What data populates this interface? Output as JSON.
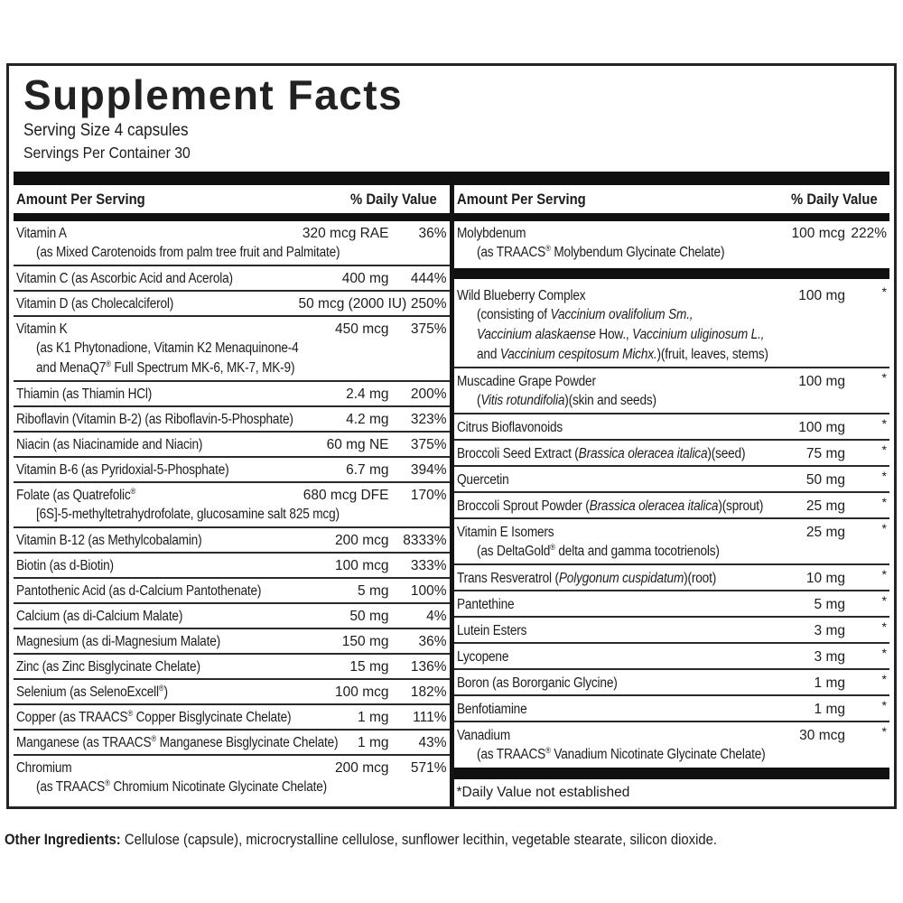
{
  "panel": {
    "title": "Supplement Facts",
    "serving_size": "Serving Size 4 capsules",
    "servings_per_container": "Servings Per Container 30"
  },
  "columns": [
    {
      "id": "left",
      "header": {
        "amount_label": "Amount Per Serving",
        "dv_label": "% Daily Value"
      },
      "rows": [
        {
          "name": [
            {
              "t": "Vitamin A"
            }
          ],
          "amount": "320 mcg RAE",
          "dv": "36%",
          "sub": [
            [
              {
                "t": "(as Mixed Carotenoids from palm tree fruit and Palmitate)"
              }
            ]
          ]
        },
        {
          "name": [
            {
              "t": "Vitamin C (as Ascorbic Acid and Acerola)"
            }
          ],
          "amount": "400 mg",
          "dv": "444%"
        },
        {
          "name": [
            {
              "t": "Vitamin D (as Cholecalciferol)"
            }
          ],
          "amount": "50 mcg (2000 IU)",
          "dv": "250%"
        },
        {
          "name": [
            {
              "t": "Vitamin K"
            }
          ],
          "amount": "450 mcg",
          "dv": "375%",
          "sub": [
            [
              {
                "t": "(as K1 Phytonadione, Vitamin K2 Menaquinone-4"
              }
            ],
            [
              {
                "t": "and MenaQ7® Full Spectrum MK-6, MK-7, MK-9)"
              }
            ]
          ]
        },
        {
          "name": [
            {
              "t": "Thiamin (as Thiamin HCl)"
            }
          ],
          "amount": "2.4 mg",
          "dv": "200%"
        },
        {
          "name": [
            {
              "t": "Riboflavin (Vitamin B-2) (as Riboflavin-5-Phosphate)"
            }
          ],
          "amount": "4.2 mg",
          "dv": "323%"
        },
        {
          "name": [
            {
              "t": "Niacin (as Niacinamide and Niacin)"
            }
          ],
          "amount": "60 mg NE",
          "dv": "375%"
        },
        {
          "name": [
            {
              "t": "Vitamin B-6 (as Pyridoxial-5-Phosphate)"
            }
          ],
          "amount": "6.7 mg",
          "dv": "394%"
        },
        {
          "name": [
            {
              "t": "Folate (as Quatrefolic®"
            }
          ],
          "amount": "680 mcg DFE",
          "dv": "170%",
          "sub": [
            [
              {
                "t": "[6S]-5-methyltetrahydrofolate, glucosamine salt 825 mcg)"
              }
            ]
          ]
        },
        {
          "name": [
            {
              "t": "Vitamin B-12 (as Methylcobalamin)"
            }
          ],
          "amount": "200 mcg",
          "dv": "8333%"
        },
        {
          "name": [
            {
              "t": "Biotin (as d-Biotin)"
            }
          ],
          "amount": "100 mcg",
          "dv": "333%"
        },
        {
          "name": [
            {
              "t": "Pantothenic Acid (as d-Calcium Pantothenate)"
            }
          ],
          "amount": "5 mg",
          "dv": "100%"
        },
        {
          "name": [
            {
              "t": "Calcium (as di-Calcium Malate)"
            }
          ],
          "amount": "50 mg",
          "dv": "4%"
        },
        {
          "name": [
            {
              "t": "Magnesium (as di-Magnesium Malate)"
            }
          ],
          "amount": "150 mg",
          "dv": "36%"
        },
        {
          "name": [
            {
              "t": "Zinc (as Zinc Bisglycinate Chelate)"
            }
          ],
          "amount": "15 mg",
          "dv": "136%"
        },
        {
          "name": [
            {
              "t": "Selenium (as SelenoExcell®)"
            }
          ],
          "amount": "100 mcg",
          "dv": "182%"
        },
        {
          "name": [
            {
              "t": "Copper (as TRAACS® Copper Bisglycinate Chelate)"
            }
          ],
          "amount": "1 mg",
          "dv": "111%"
        },
        {
          "name": [
            {
              "t": "Manganese (as TRAACS® Manganese Bisglycinate Chelate)"
            }
          ],
          "amount": "1 mg",
          "dv": "43%"
        },
        {
          "name": [
            {
              "t": "Chromium"
            }
          ],
          "amount": "200 mcg",
          "dv": "571%",
          "sub": [
            [
              {
                "t": "(as TRAACS® Chromium Nicotinate Glycinate Chelate)"
              }
            ]
          ]
        }
      ]
    },
    {
      "id": "right",
      "header": {
        "amount_label": "Amount Per Serving",
        "dv_label": "% Daily Value"
      },
      "rows": [
        {
          "name": [
            {
              "t": "Molybdenum"
            }
          ],
          "amount": "100 mcg",
          "dv": "222%",
          "sub": [
            [
              {
                "t": "(as TRAACS® Molybendum Glycinate Chelate)"
              }
            ]
          ]
        },
        {
          "thick_divider_before": true,
          "name": [
            {
              "t": "Wild Blueberry Complex"
            }
          ],
          "amount": "100 mg",
          "dv": "*",
          "sub": [
            [
              {
                "t": "(consisting of "
              },
              {
                "t": "Vaccinium ovalifolium Sm.,",
                "i": true
              }
            ],
            [
              {
                "t": "Vaccinium alaskaense",
                "i": true
              },
              {
                "t": " How., "
              },
              {
                "t": "Vaccinium uliginosum L.,",
                "i": true
              }
            ],
            [
              {
                "t": "and "
              },
              {
                "t": "Vaccinium cespitosum Michx.",
                "i": true
              },
              {
                "t": ")(fruit, leaves, stems)"
              }
            ]
          ]
        },
        {
          "name": [
            {
              "t": "Muscadine Grape Powder"
            }
          ],
          "amount": "100 mg",
          "dv": "*",
          "sub": [
            [
              {
                "t": "("
              },
              {
                "t": "Vitis rotundifolia",
                "i": true
              },
              {
                "t": ")(skin and seeds)"
              }
            ]
          ]
        },
        {
          "name": [
            {
              "t": "Citrus Bioflavonoids"
            }
          ],
          "amount": "100 mg",
          "dv": "*"
        },
        {
          "name": [
            {
              "t": "Broccoli Seed Extract ("
            },
            {
              "t": "Brassica oleracea italica",
              "i": true
            },
            {
              "t": ")(seed)"
            }
          ],
          "amount": "75 mg",
          "dv": "*"
        },
        {
          "name": [
            {
              "t": "Quercetin"
            }
          ],
          "amount": "50 mg",
          "dv": "*"
        },
        {
          "name": [
            {
              "t": "Broccoli Sprout Powder ("
            },
            {
              "t": "Brassica oleracea italica",
              "i": true
            },
            {
              "t": ")(sprout)"
            }
          ],
          "amount": "25 mg",
          "dv": "*"
        },
        {
          "name": [
            {
              "t": "Vitamin E Isomers"
            }
          ],
          "amount": "25 mg",
          "dv": "*",
          "sub": [
            [
              {
                "t": "(as DeltaGold® delta and gamma tocotrienols)"
              }
            ]
          ]
        },
        {
          "name": [
            {
              "t": "Trans Resveratrol ("
            },
            {
              "t": "Polygonum cuspidatum",
              "i": true
            },
            {
              "t": ")(root)"
            }
          ],
          "amount": "10 mg",
          "dv": "*"
        },
        {
          "name": [
            {
              "t": "Pantethine"
            }
          ],
          "amount": "5 mg",
          "dv": "*"
        },
        {
          "name": [
            {
              "t": "Lutein Esters"
            }
          ],
          "amount": "3 mg",
          "dv": "*"
        },
        {
          "name": [
            {
              "t": "Lycopene"
            }
          ],
          "amount": "3 mg",
          "dv": "*"
        },
        {
          "name": [
            {
              "t": "Boron (as Bororganic Glycine)"
            }
          ],
          "amount": "1 mg",
          "dv": "*"
        },
        {
          "name": [
            {
              "t": "Benfotiamine"
            }
          ],
          "amount": "1 mg",
          "dv": "*"
        },
        {
          "name": [
            {
              "t": "Vanadium"
            }
          ],
          "amount": "30 mcg",
          "dv": "*",
          "sub": [
            [
              {
                "t": "(as TRAACS® Vanadium Nicotinate Glycinate Chelate)"
              }
            ]
          ]
        }
      ],
      "footnote": "*Daily Value not established"
    }
  ],
  "other_ingredients": {
    "label": "Other Ingredients:",
    "text": " Cellulose (capsule), microcrystalline cellulose, sunflower lecithin, vegetable stearate, silicon dioxide."
  },
  "colors": {
    "bar": "#101010",
    "border": "#242424",
    "text": "#1c1c1c",
    "background": "#ffffff"
  }
}
